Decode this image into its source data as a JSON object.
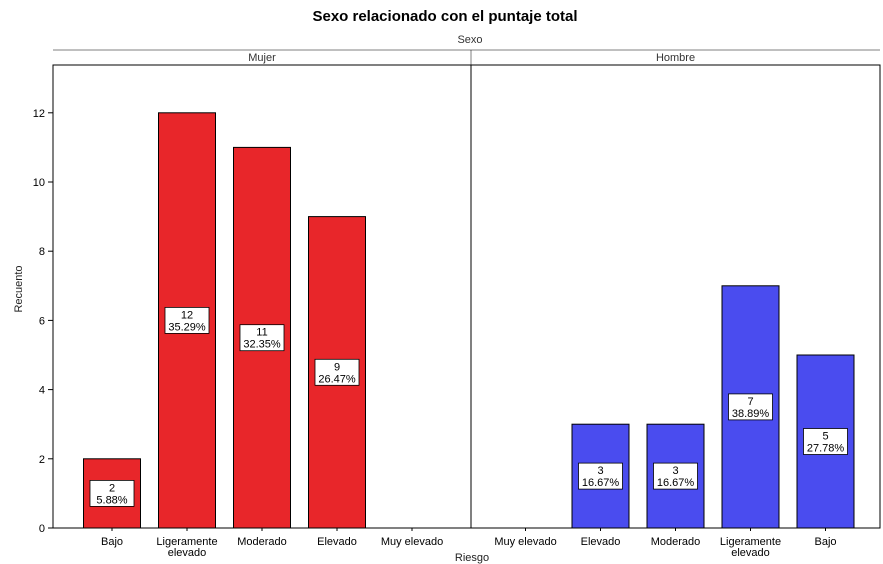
{
  "chart_data": {
    "type": "bar",
    "title": "Sexo relacionado con el puntaje total",
    "facet_title": "Sexo",
    "xlabel": "Riesgo",
    "ylabel": "Recuento",
    "ylim": [
      0,
      13
    ],
    "yticks": [
      0,
      2,
      4,
      6,
      8,
      10,
      12
    ],
    "grid": false,
    "panels": [
      {
        "name": "Mujer",
        "color": "#e8262a",
        "categories": [
          "Bajo",
          "Ligeramente elevado",
          "Moderado",
          "Elevado",
          "Muy elevado"
        ],
        "values": [
          2,
          12,
          11,
          9,
          0
        ],
        "percent_labels": [
          "5.88%",
          "35.29%",
          "32.35%",
          "26.47%",
          ""
        ]
      },
      {
        "name": "Hombre",
        "color": "#4a4cef",
        "categories": [
          "Muy elevado",
          "Elevado",
          "Moderado",
          "Ligeramente elevado",
          "Bajo"
        ],
        "values": [
          0,
          3,
          3,
          7,
          5
        ],
        "percent_labels": [
          "",
          "16.67%",
          "16.67%",
          "38.89%",
          "27.78%"
        ]
      }
    ]
  }
}
